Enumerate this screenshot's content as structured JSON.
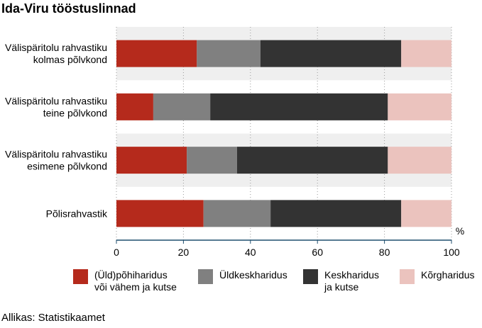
{
  "chart_data": {
    "type": "bar",
    "orientation": "horizontal",
    "stacked": true,
    "title": "Ida-Viru tööstuslinnad",
    "unit_label": "%",
    "categories": [
      "Välispäritolu rahvastiku\nkolmas põlvkond",
      "Välispäritolu rahvastiku\nteine põlvkond",
      "Välispäritolu rahvastiku\nesimene põlvkond",
      "Põlisrahvastik"
    ],
    "series": [
      {
        "name": "(Üld)põhiharidus\nvõi vähem ja kutse",
        "color": "#b52a1c",
        "values": [
          24,
          11,
          21,
          26
        ]
      },
      {
        "name": "Üldkeskharidus",
        "color": "#808080",
        "values": [
          19,
          17,
          15,
          20
        ]
      },
      {
        "name": "Keskharidus\nja kutse",
        "color": "#333333",
        "values": [
          42,
          53,
          45,
          39
        ]
      },
      {
        "name": "Kõrgharidus",
        "color": "#ebc3be",
        "values": [
          15,
          19,
          19,
          15
        ]
      }
    ],
    "xlim": [
      0,
      100
    ],
    "xticks": [
      "0",
      "20",
      "40",
      "60",
      "80",
      "100"
    ],
    "grid": "vertical dotted",
    "band_shading": "alternating light grey",
    "legend_position": "bottom"
  },
  "source": "Allikas: Statistikaamet"
}
